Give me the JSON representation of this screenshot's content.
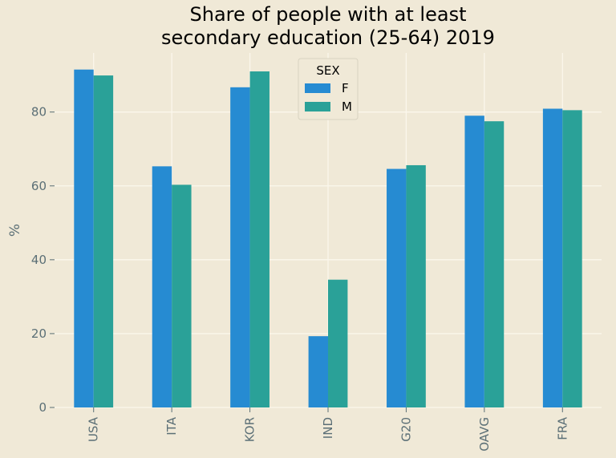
{
  "chart_data": {
    "type": "bar",
    "title_lines": [
      "Share of people with at least",
      "secondary education (25-64) 2019"
    ],
    "xlabel": "",
    "ylabel": "%",
    "ylim": [
      0,
      96
    ],
    "yticks": [
      0,
      20,
      40,
      60,
      80
    ],
    "grid": true,
    "legend": {
      "title": "SEX",
      "placement": "top-center"
    },
    "categories": [
      "USA",
      "ITA",
      "KOR",
      "IND",
      "G20",
      "OAVG",
      "FRA"
    ],
    "series": [
      {
        "name": "F",
        "color": "#268bd2",
        "values": [
          91.5,
          65.3,
          86.7,
          19.3,
          64.6,
          79.0,
          80.9
        ]
      },
      {
        "name": "M",
        "color": "#2aa198",
        "values": [
          89.9,
          60.3,
          91.0,
          34.6,
          65.6,
          77.5,
          80.5
        ]
      }
    ]
  }
}
